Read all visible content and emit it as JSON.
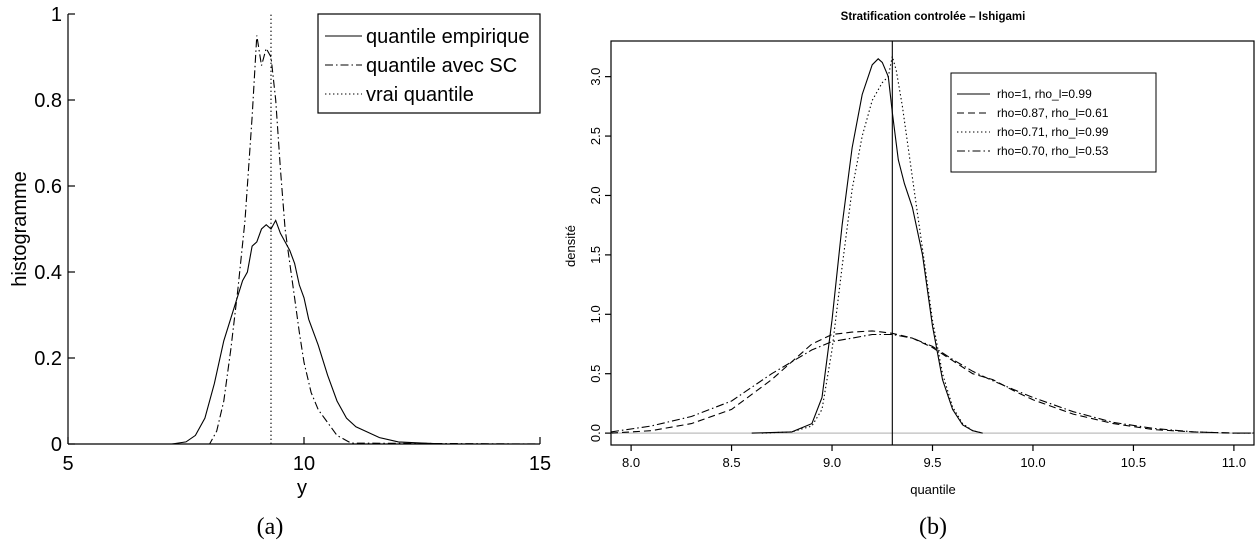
{
  "captions": {
    "a": "(a)",
    "b": "(b)"
  },
  "chart_data": [
    {
      "type": "line",
      "title": "",
      "xlabel": "y",
      "ylabel": "histogramme",
      "xlim": [
        5,
        15
      ],
      "ylim": [
        0,
        1
      ],
      "x_ticks": [
        "5",
        "10",
        "15"
      ],
      "y_ticks": [
        "0",
        "0.2",
        "0.4",
        "0.6",
        "0.8",
        "1"
      ],
      "legend_position": "top-right",
      "series": [
        {
          "name": "quantile empirique",
          "style": "solid",
          "x": [
            5,
            7.2,
            7.5,
            7.7,
            7.9,
            8.1,
            8.3,
            8.5,
            8.7,
            8.8,
            8.9,
            9.0,
            9.1,
            9.2,
            9.3,
            9.4,
            9.5,
            9.6,
            9.7,
            9.8,
            9.9,
            10.0,
            10.1,
            10.3,
            10.5,
            10.7,
            10.9,
            11.1,
            11.3,
            11.6,
            12.0,
            12.5,
            13.0,
            15
          ],
          "values": [
            0,
            0,
            0.005,
            0.02,
            0.06,
            0.14,
            0.24,
            0.31,
            0.38,
            0.4,
            0.46,
            0.47,
            0.5,
            0.51,
            0.5,
            0.52,
            0.49,
            0.47,
            0.45,
            0.42,
            0.37,
            0.34,
            0.29,
            0.23,
            0.16,
            0.1,
            0.06,
            0.04,
            0.03,
            0.015,
            0.005,
            0.002,
            0,
            0
          ]
        },
        {
          "name": "quantile avec SC",
          "style": "dashdot",
          "x": [
            5,
            8.0,
            8.15,
            8.3,
            8.45,
            8.6,
            8.75,
            8.9,
            9.0,
            9.1,
            9.2,
            9.3,
            9.4,
            9.5,
            9.6,
            9.7,
            9.8,
            9.9,
            10.0,
            10.15,
            10.3,
            10.5,
            10.7,
            10.9,
            11.0,
            15
          ],
          "values": [
            0,
            0,
            0.03,
            0.1,
            0.22,
            0.36,
            0.52,
            0.76,
            0.95,
            0.88,
            0.92,
            0.9,
            0.8,
            0.64,
            0.5,
            0.42,
            0.34,
            0.26,
            0.19,
            0.12,
            0.08,
            0.05,
            0.02,
            0.008,
            0.002,
            0
          ]
        },
        {
          "name": "vrai quantile",
          "style": "dotted",
          "x": [
            9.3,
            9.3
          ],
          "values": [
            0,
            1
          ]
        }
      ]
    },
    {
      "type": "line",
      "title": "Stratification controlée – Ishigami",
      "xlabel": "quantile",
      "ylabel": "densité",
      "xlim": [
        7.9,
        11.1
      ],
      "ylim": [
        -0.1,
        3.3
      ],
      "x_ticks": [
        "8.0",
        "8.5",
        "9.0",
        "9.5",
        "10.0",
        "10.5",
        "11.0"
      ],
      "y_ticks": [
        "0.0",
        "0.5",
        "1.0",
        "1.5",
        "2.0",
        "2.5",
        "3.0"
      ],
      "legend_position": "top-right",
      "reference_lines": {
        "vertical_x": 9.3,
        "horizontal_y": 0
      },
      "series": [
        {
          "name": "rho=1, rho_l=0.99",
          "style": "solid",
          "x": [
            8.6,
            8.8,
            8.9,
            8.95,
            9.0,
            9.05,
            9.1,
            9.15,
            9.2,
            9.23,
            9.25,
            9.28,
            9.3,
            9.33,
            9.36,
            9.4,
            9.45,
            9.5,
            9.55,
            9.6,
            9.65,
            9.7,
            9.75
          ],
          "values": [
            0,
            0.01,
            0.08,
            0.3,
            0.95,
            1.75,
            2.4,
            2.85,
            3.1,
            3.15,
            3.12,
            3.0,
            2.7,
            2.3,
            2.1,
            1.9,
            1.5,
            0.9,
            0.45,
            0.2,
            0.07,
            0.02,
            0
          ]
        },
        {
          "name": "rho=0.87, rho_l=0.61",
          "style": "dashed",
          "x": [
            7.9,
            8.1,
            8.3,
            8.5,
            8.7,
            8.8,
            8.9,
            9.0,
            9.1,
            9.2,
            9.3,
            9.4,
            9.5,
            9.6,
            9.7,
            9.8,
            9.9,
            10.0,
            10.2,
            10.4,
            10.6,
            10.8,
            11.0,
            11.1
          ],
          "values": [
            0.0,
            0.02,
            0.08,
            0.2,
            0.45,
            0.6,
            0.75,
            0.83,
            0.85,
            0.86,
            0.84,
            0.8,
            0.72,
            0.61,
            0.5,
            0.45,
            0.36,
            0.28,
            0.16,
            0.08,
            0.03,
            0.01,
            0.0,
            0.0
          ]
        },
        {
          "name": "rho=0.71, rho_l=0.99",
          "style": "dotted",
          "x": [
            8.65,
            8.8,
            8.9,
            8.95,
            9.0,
            9.05,
            9.1,
            9.15,
            9.2,
            9.25,
            9.28,
            9.3,
            9.32,
            9.35,
            9.4,
            9.45,
            9.5,
            9.55,
            9.6,
            9.65,
            9.7,
            9.75
          ],
          "values": [
            0,
            0.01,
            0.06,
            0.2,
            0.7,
            1.4,
            2.05,
            2.5,
            2.8,
            2.95,
            3.0,
            3.17,
            3.05,
            2.75,
            2.15,
            1.55,
            0.95,
            0.5,
            0.22,
            0.08,
            0.02,
            0
          ]
        },
        {
          "name": "rho=0.70, rho_l=0.53",
          "style": "dashdot",
          "x": [
            7.9,
            8.1,
            8.3,
            8.5,
            8.7,
            8.9,
            9.0,
            9.1,
            9.2,
            9.3,
            9.4,
            9.5,
            9.6,
            9.7,
            9.8,
            9.9,
            10.0,
            10.2,
            10.4,
            10.6,
            10.8,
            11.0,
            11.1
          ],
          "values": [
            0.01,
            0.06,
            0.14,
            0.27,
            0.5,
            0.7,
            0.77,
            0.8,
            0.83,
            0.83,
            0.8,
            0.73,
            0.62,
            0.52,
            0.44,
            0.37,
            0.3,
            0.18,
            0.09,
            0.04,
            0.01,
            0.0,
            0.0
          ]
        }
      ]
    }
  ]
}
